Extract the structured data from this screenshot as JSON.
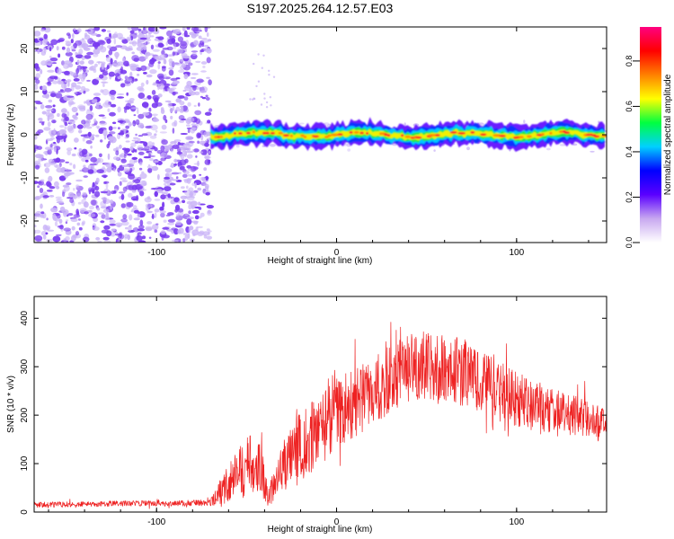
{
  "title": "S197.2025.264.12.57.E03",
  "colors": {
    "sparse_points": "#7a3cf0",
    "sparse_points_light": "#c9b3f7",
    "snr_line": "#ee2222",
    "axis": "#000000"
  },
  "chart_data": [
    {
      "type": "heatmap",
      "title": "S197.2025.264.12.57.E03",
      "xlabel": "Height of straight line (km)",
      "ylabel": "Frequency (Hz)",
      "xlim": [
        -168,
        150
      ],
      "ylim": [
        -25,
        25
      ],
      "xticks": [
        -100,
        0,
        100
      ],
      "yticks": [
        -20,
        -10,
        0,
        10,
        20
      ],
      "noise_region_x": [
        -168,
        -70
      ],
      "signal_region_x": [
        -70,
        150
      ],
      "signal_frequency_hz": 0,
      "colorbar": {
        "label": "Normalized spectral amplitude",
        "range": [
          0,
          0.95
        ],
        "ticks": [
          "0.0",
          "0.2",
          "0.4",
          "0.6",
          "0.8"
        ],
        "colormap": [
          "#ffffff",
          "#c8a8f0",
          "#5a00ff",
          "#0000ff",
          "#00d0ff",
          "#00ff40",
          "#ffff00",
          "#ff8000",
          "#ff0000",
          "#ff0080"
        ]
      }
    },
    {
      "type": "line",
      "xlabel": "Height of straight line (km)",
      "ylabel": "SNR (10 * v/v)",
      "xlim": [
        -168,
        150
      ],
      "ylim": [
        0,
        445
      ],
      "xticks": [
        -100,
        0,
        100
      ],
      "yticks": [
        0,
        100,
        200,
        300,
        400
      ],
      "series": [
        {
          "name": "SNR",
          "x": [
            -168,
            -150,
            -130,
            -110,
            -90,
            -70,
            -62,
            -55,
            -48,
            -42,
            -38,
            -33,
            -28,
            -23,
            -18,
            -12,
            -5,
            0,
            5,
            10,
            20,
            30,
            40,
            50,
            60,
            70,
            80,
            90,
            100,
            110,
            120,
            130,
            140,
            150
          ],
          "y": [
            15,
            16,
            17,
            18,
            18,
            20,
            50,
            80,
            100,
            90,
            30,
            70,
            110,
            130,
            140,
            160,
            185,
            205,
            215,
            225,
            250,
            275,
            300,
            300,
            295,
            290,
            270,
            250,
            230,
            220,
            210,
            200,
            190,
            180
          ],
          "spread": [
            8,
            8,
            8,
            8,
            8,
            10,
            45,
            70,
            85,
            70,
            30,
            55,
            75,
            90,
            95,
            100,
            100,
            95,
            95,
            95,
            95,
            100,
            100,
            100,
            100,
            95,
            95,
            85,
            80,
            70,
            65,
            60,
            55,
            50
          ]
        }
      ]
    }
  ]
}
